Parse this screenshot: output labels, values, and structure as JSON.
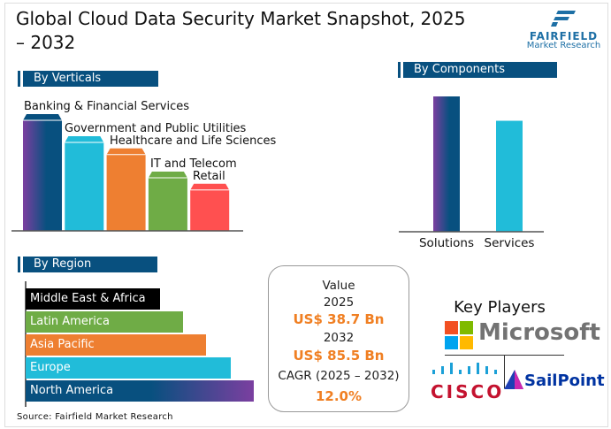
{
  "title": "Global Cloud Data Security Market Snapshot, 2025 – 2032",
  "logo": {
    "name": "FAIRFIELD",
    "sub": "Market Research"
  },
  "chart_data": [
    {
      "type": "bar",
      "title": "By Verticals",
      "categories": [
        "Banking & Financial Services",
        "Government and Public Utilities",
        "Healthcare and Life Sciences",
        "IT and Telecom",
        "Retail"
      ],
      "values": [
        100,
        80,
        69,
        48,
        37
      ],
      "colors": [
        "#08507f",
        "#21bcd9",
        "#ee7f31",
        "#6fac46",
        "#ff5050"
      ]
    },
    {
      "type": "bar",
      "title": "By Components",
      "categories": [
        "Solutions",
        "Services"
      ],
      "values": [
        100,
        82
      ],
      "colors": [
        "#08507f",
        "#21bcd9"
      ]
    },
    {
      "type": "bar",
      "orientation": "horizontal",
      "title": "By Region",
      "categories": [
        "Middle East & Africa",
        "Latin America",
        "Asia Pacific",
        "Europe",
        "North America"
      ],
      "values": [
        59,
        69,
        79,
        90,
        100
      ],
      "colors": [
        "#000000",
        "#6fac46",
        "#ee7f31",
        "#21bcd9",
        "#08507f"
      ]
    }
  ],
  "value_box": {
    "label": "Value",
    "year1": "2025",
    "value1": "US$ 38.7 Bn",
    "year2": "2032",
    "value2": "US$ 85.5 Bn",
    "cagr_label": "CAGR (2025 – 2032)",
    "cagr": "12.0%"
  },
  "key_players": {
    "title": "Key Players",
    "players": [
      "Microsoft",
      "CISCO",
      "SailPoint"
    ]
  },
  "source": "Source: Fairfield Market Research"
}
